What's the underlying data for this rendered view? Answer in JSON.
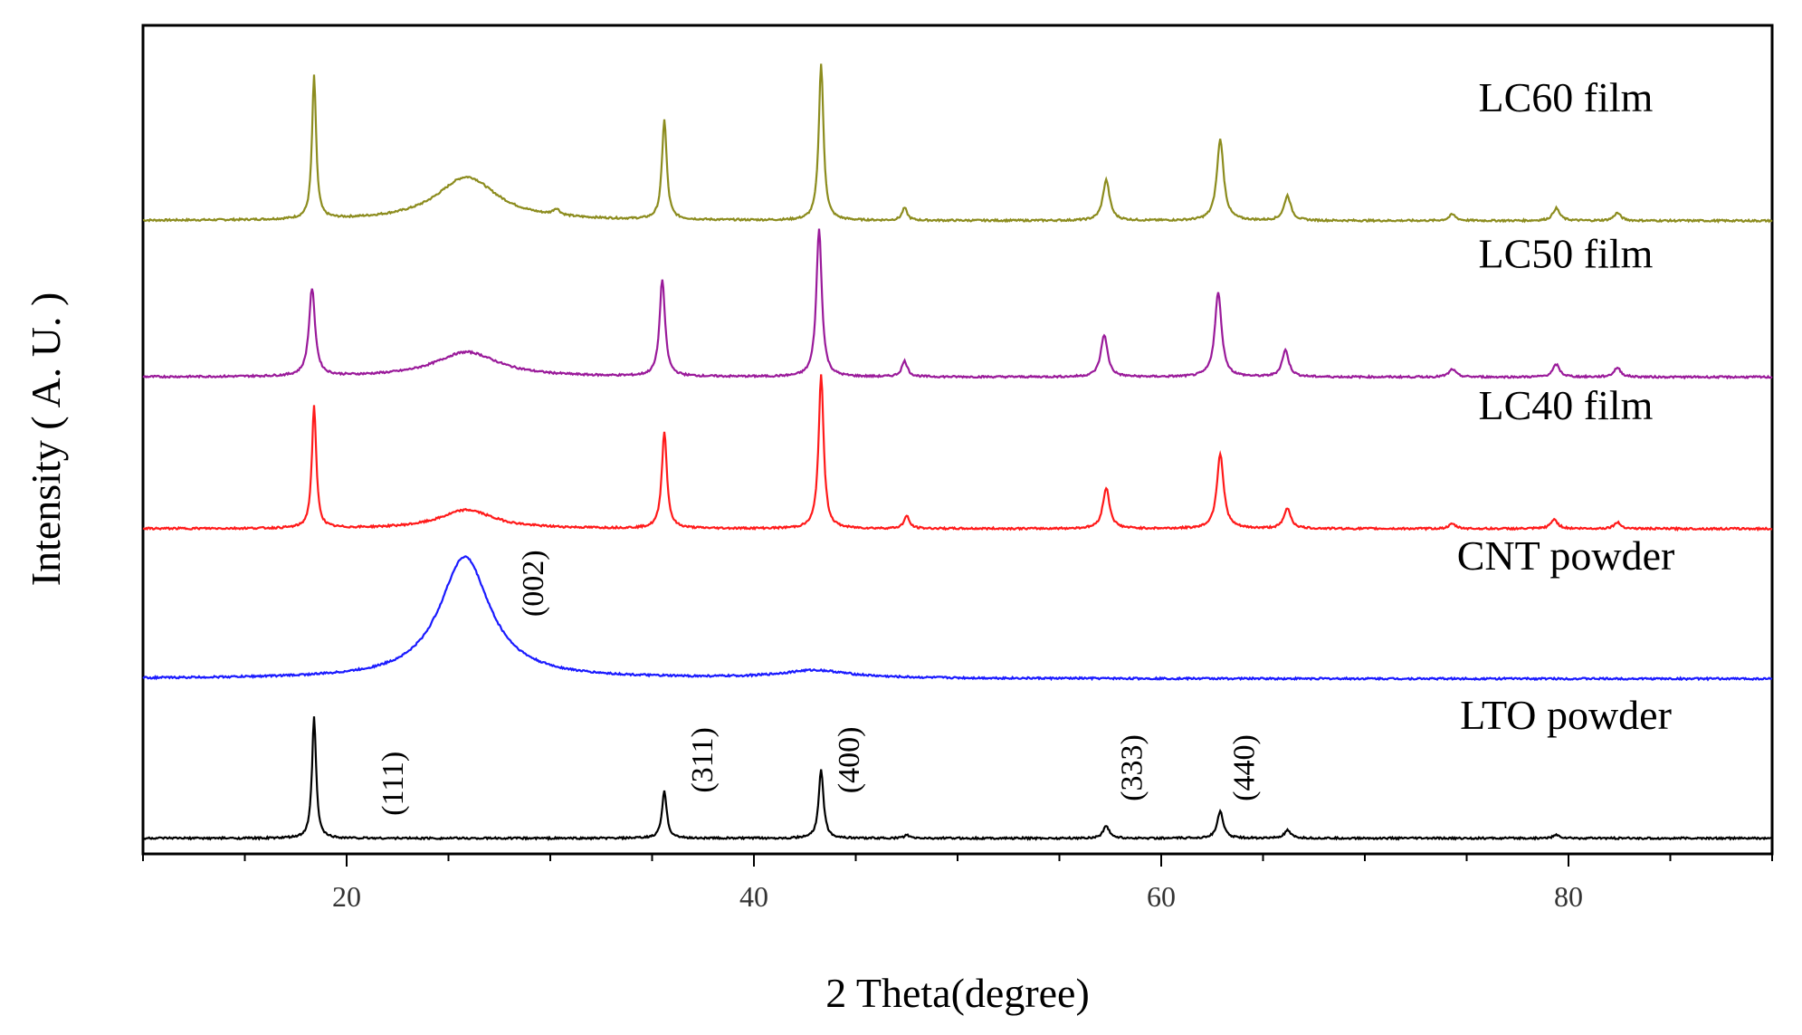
{
  "chart_data": {
    "type": "line",
    "title": "",
    "xlabel": "2 Theta(degree)",
    "ylabel": "Intensity ( A. U. )",
    "xlim": [
      10,
      90
    ],
    "x_ticks": [
      20,
      40,
      60,
      80
    ],
    "y_ticks_labeled": false,
    "grid": false,
    "legend": "series labels printed at right of each trace",
    "series": [
      {
        "name": "LC60 film",
        "color": "#8c8c1e",
        "baseline": 4.05,
        "peaks": [
          {
            "x": 18.4,
            "h": 0.92,
            "w": 0.12
          },
          {
            "x": 25.9,
            "h": 0.28,
            "w": 1.8
          },
          {
            "x": 30.3,
            "h": 0.04,
            "w": 0.2
          },
          {
            "x": 35.6,
            "h": 0.64,
            "w": 0.14
          },
          {
            "x": 43.3,
            "h": 1.0,
            "w": 0.14
          },
          {
            "x": 47.4,
            "h": 0.08,
            "w": 0.15
          },
          {
            "x": 57.3,
            "h": 0.26,
            "w": 0.2
          },
          {
            "x": 62.9,
            "h": 0.52,
            "w": 0.2
          },
          {
            "x": 66.2,
            "h": 0.16,
            "w": 0.2
          },
          {
            "x": 74.3,
            "h": 0.04,
            "w": 0.2
          },
          {
            "x": 79.4,
            "h": 0.08,
            "w": 0.2
          },
          {
            "x": 82.4,
            "h": 0.05,
            "w": 0.2
          }
        ]
      },
      {
        "name": "LC50 film",
        "color": "#9a1a9a",
        "baseline": 3.05,
        "peaks": [
          {
            "x": 18.3,
            "h": 0.56,
            "w": 0.18
          },
          {
            "x": 25.9,
            "h": 0.16,
            "w": 1.9
          },
          {
            "x": 35.5,
            "h": 0.62,
            "w": 0.16
          },
          {
            "x": 43.2,
            "h": 0.95,
            "w": 0.16
          },
          {
            "x": 47.4,
            "h": 0.1,
            "w": 0.17
          },
          {
            "x": 57.2,
            "h": 0.27,
            "w": 0.2
          },
          {
            "x": 62.8,
            "h": 0.54,
            "w": 0.2
          },
          {
            "x": 66.1,
            "h": 0.17,
            "w": 0.2
          },
          {
            "x": 74.3,
            "h": 0.05,
            "w": 0.2
          },
          {
            "x": 79.4,
            "h": 0.08,
            "w": 0.2
          },
          {
            "x": 82.4,
            "h": 0.06,
            "w": 0.2
          }
        ]
      },
      {
        "name": "LC40 film",
        "color": "#ff1a1a",
        "baseline": 2.08,
        "peaks": [
          {
            "x": 18.4,
            "h": 0.78,
            "w": 0.13
          },
          {
            "x": 25.9,
            "h": 0.12,
            "w": 1.6
          },
          {
            "x": 35.6,
            "h": 0.62,
            "w": 0.15
          },
          {
            "x": 43.3,
            "h": 0.98,
            "w": 0.15
          },
          {
            "x": 47.5,
            "h": 0.08,
            "w": 0.16
          },
          {
            "x": 57.3,
            "h": 0.26,
            "w": 0.2
          },
          {
            "x": 62.9,
            "h": 0.48,
            "w": 0.2
          },
          {
            "x": 66.2,
            "h": 0.13,
            "w": 0.2
          },
          {
            "x": 74.3,
            "h": 0.03,
            "w": 0.2
          },
          {
            "x": 79.3,
            "h": 0.06,
            "w": 0.2
          },
          {
            "x": 82.4,
            "h": 0.04,
            "w": 0.2
          }
        ]
      },
      {
        "name": "CNT powder",
        "color": "#1a1aff",
        "baseline": 1.12,
        "peaks": [
          {
            "x": 25.8,
            "h": 0.78,
            "w": 1.5
          },
          {
            "x": 43.0,
            "h": 0.05,
            "w": 2.0
          }
        ]
      },
      {
        "name": "LTO powder",
        "color": "#000000",
        "baseline": 0.1,
        "peaks": [
          {
            "x": 18.4,
            "h": 0.78,
            "w": 0.12
          },
          {
            "x": 35.6,
            "h": 0.3,
            "w": 0.14
          },
          {
            "x": 43.3,
            "h": 0.44,
            "w": 0.14
          },
          {
            "x": 47.5,
            "h": 0.02,
            "w": 0.15
          },
          {
            "x": 57.3,
            "h": 0.08,
            "w": 0.18
          },
          {
            "x": 62.9,
            "h": 0.17,
            "w": 0.18
          },
          {
            "x": 66.2,
            "h": 0.05,
            "w": 0.18
          },
          {
            "x": 79.4,
            "h": 0.02,
            "w": 0.2
          }
        ]
      }
    ],
    "peak_annotations": [
      {
        "label": "(002)",
        "x": 29.3,
        "y": 1.73,
        "series": "CNT powder"
      },
      {
        "label": "(111)",
        "x": 22.4,
        "y": 0.45,
        "series": "LTO powder"
      },
      {
        "label": "(311)",
        "x": 37.6,
        "y": 0.6,
        "series": "LTO powder"
      },
      {
        "label": "(400)",
        "x": 44.8,
        "y": 0.6,
        "series": "LTO powder"
      },
      {
        "label": "(333)",
        "x": 58.7,
        "y": 0.55,
        "series": "LTO powder"
      },
      {
        "label": "(440)",
        "x": 64.2,
        "y": 0.55,
        "series": "LTO powder"
      }
    ]
  }
}
